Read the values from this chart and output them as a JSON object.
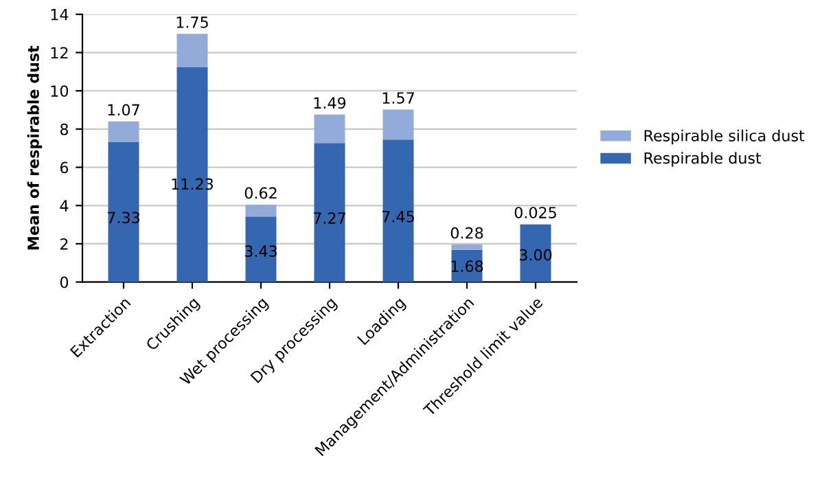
{
  "chart_data": {
    "type": "bar",
    "stacked": true,
    "ylabel": "Mean of respirable dust",
    "categories": [
      "Extraction",
      "Crushing",
      "Wet processing",
      "Dry processing",
      "Loading",
      "Management/Administration",
      "Threshold limit value"
    ],
    "series": [
      {
        "name": "Respirable dust",
        "color": "#3566b0",
        "values": [
          7.33,
          11.23,
          3.43,
          7.27,
          7.45,
          1.68,
          3.0
        ],
        "value_labels": [
          "7.33",
          "11.23",
          "3.43",
          "7.27",
          "7.45",
          "1.68",
          "3.00"
        ]
      },
      {
        "name": "Respirable silica dust",
        "color": "#93abd8",
        "values": [
          1.07,
          1.75,
          0.62,
          1.49,
          1.57,
          0.28,
          0.025
        ],
        "value_labels": [
          "1.07",
          "1.75",
          "0.62",
          "1.49",
          "1.57",
          "0.28",
          "0.025"
        ]
      }
    ],
    "ylim": [
      0,
      14
    ],
    "yticks": [
      0,
      2,
      4,
      6,
      8,
      10,
      12,
      14
    ],
    "grid": "y",
    "legend": "right"
  }
}
